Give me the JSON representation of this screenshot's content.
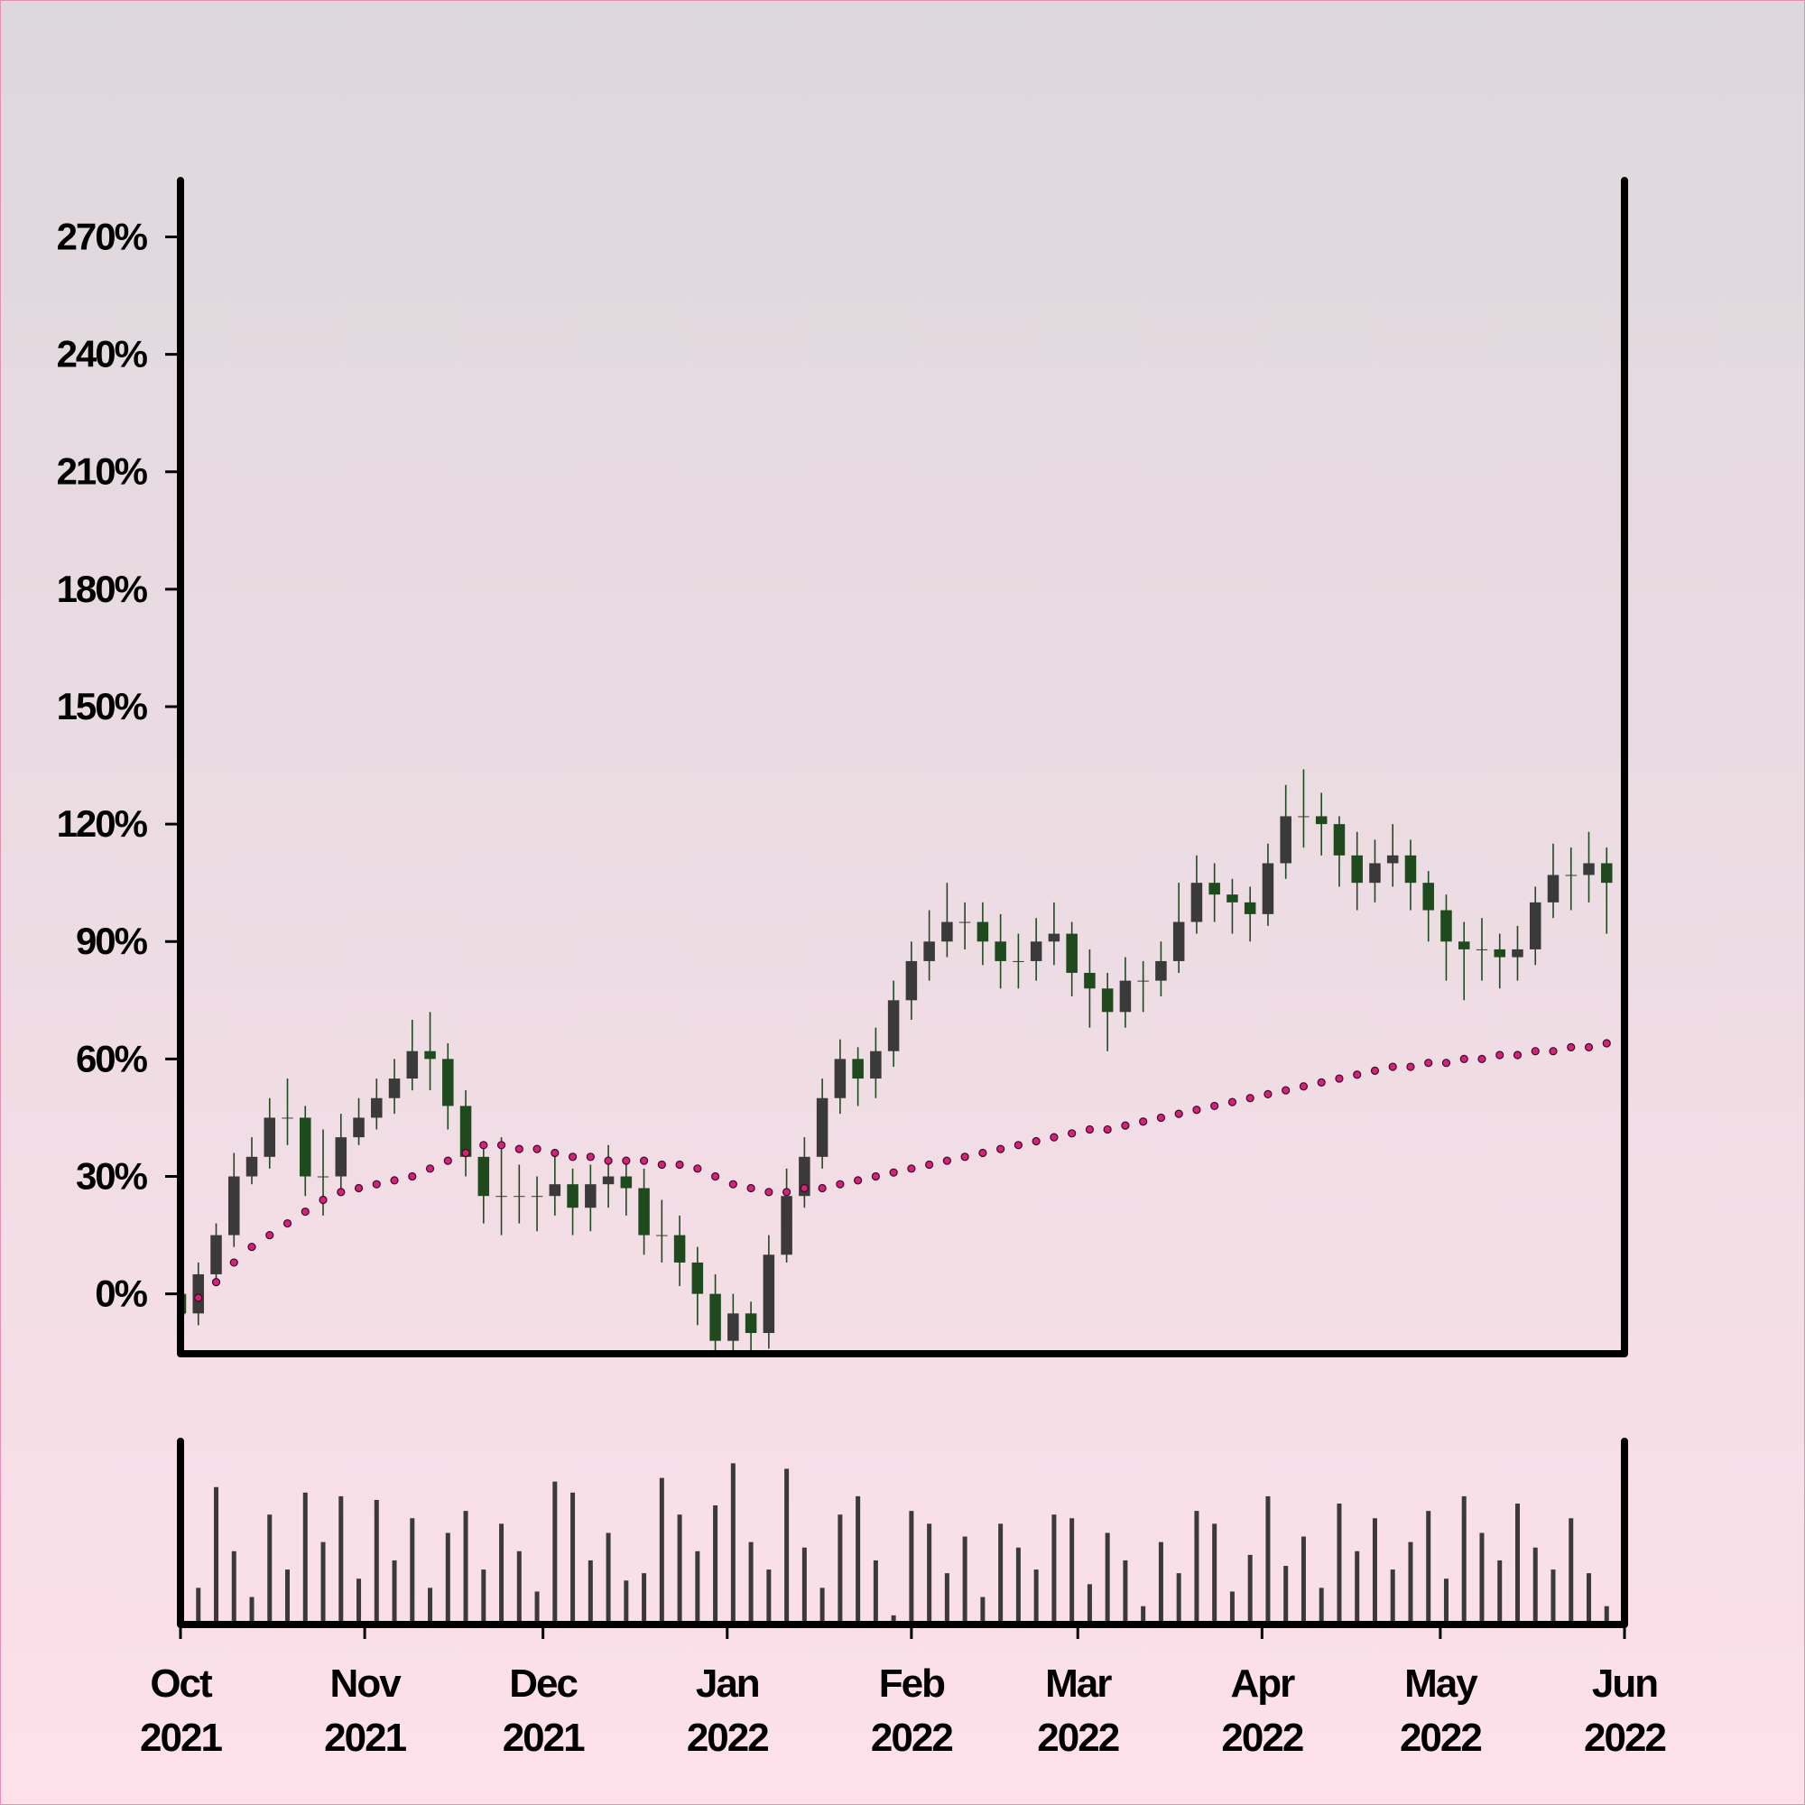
{
  "chart_data": {
    "type": "candlestick",
    "x": [
      0,
      3,
      6,
      9,
      12,
      15,
      18,
      21,
      24,
      27,
      30,
      33,
      36,
      39,
      42,
      45,
      48,
      51,
      54,
      57,
      60,
      63,
      66,
      69,
      72,
      75,
      78,
      81,
      84,
      87,
      90,
      93,
      96,
      99,
      102,
      105,
      108,
      111,
      114,
      117,
      120,
      123,
      126,
      129,
      132,
      135,
      138,
      141,
      144,
      147,
      150,
      153,
      156,
      159,
      162,
      165,
      168,
      171,
      174,
      177,
      180,
      183,
      186,
      189,
      192,
      195,
      198,
      201,
      204,
      207,
      210,
      213,
      216,
      219,
      222,
      225,
      228,
      231,
      234,
      237,
      240
    ],
    "open": [
      0,
      -5,
      5,
      15,
      30,
      35,
      45,
      45,
      30,
      30,
      40,
      45,
      50,
      55,
      62,
      60,
      48,
      35,
      25,
      25,
      25,
      25,
      28,
      22,
      28,
      30,
      27,
      15,
      15,
      8,
      0,
      -12,
      -5,
      -10,
      10,
      25,
      35,
      50,
      60,
      55,
      62,
      75,
      85,
      90,
      95,
      95,
      90,
      85,
      85,
      90,
      92,
      82,
      78,
      72,
      80,
      80,
      85,
      95,
      105,
      102,
      100,
      97,
      110,
      122,
      122,
      120,
      112,
      105,
      110,
      112,
      105,
      98,
      90,
      88,
      88,
      86,
      88,
      100,
      107,
      107,
      110
    ],
    "high": [
      3,
      8,
      18,
      36,
      40,
      50,
      55,
      48,
      42,
      46,
      50,
      55,
      60,
      70,
      72,
      64,
      52,
      38,
      40,
      33,
      30,
      35,
      32,
      33,
      38,
      35,
      32,
      24,
      20,
      12,
      5,
      0,
      -2,
      15,
      32,
      40,
      55,
      65,
      63,
      68,
      80,
      90,
      98,
      105,
      100,
      100,
      97,
      92,
      96,
      100,
      95,
      88,
      82,
      86,
      85,
      90,
      105,
      112,
      110,
      106,
      104,
      115,
      130,
      134,
      128,
      122,
      118,
      116,
      120,
      116,
      108,
      102,
      95,
      96,
      92,
      94,
      104,
      115,
      114,
      118,
      114
    ],
    "low": [
      -15,
      -8,
      2,
      12,
      28,
      32,
      38,
      25,
      20,
      27,
      38,
      42,
      46,
      52,
      52,
      42,
      30,
      18,
      15,
      18,
      16,
      20,
      15,
      16,
      22,
      20,
      10,
      8,
      2,
      -8,
      -20,
      -18,
      -15,
      -14,
      8,
      22,
      32,
      46,
      48,
      50,
      58,
      70,
      80,
      86,
      88,
      84,
      78,
      78,
      80,
      84,
      76,
      68,
      62,
      68,
      72,
      76,
      82,
      92,
      95,
      92,
      90,
      94,
      106,
      114,
      112,
      104,
      98,
      100,
      104,
      98,
      90,
      80,
      75,
      80,
      78,
      80,
      84,
      96,
      98,
      100,
      92
    ],
    "close": [
      -5,
      5,
      15,
      30,
      35,
      45,
      45,
      30,
      30,
      40,
      45,
      50,
      55,
      62,
      60,
      48,
      35,
      25,
      25,
      25,
      25,
      28,
      22,
      28,
      30,
      27,
      15,
      15,
      8,
      0,
      -12,
      -5,
      -10,
      10,
      25,
      35,
      50,
      60,
      55,
      62,
      75,
      85,
      90,
      95,
      95,
      90,
      85,
      85,
      90,
      92,
      82,
      78,
      72,
      80,
      80,
      85,
      95,
      105,
      102,
      100,
      97,
      110,
      122,
      122,
      120,
      112,
      105,
      110,
      112,
      105,
      98,
      90,
      88,
      88,
      86,
      88,
      100,
      107,
      107,
      110,
      105
    ],
    "moving_average": [
      -5,
      -1,
      3,
      8,
      12,
      15,
      18,
      21,
      24,
      26,
      27,
      28,
      29,
      30,
      32,
      34,
      36,
      38,
      38,
      37,
      37,
      36,
      35,
      35,
      34,
      34,
      34,
      33,
      33,
      32,
      30,
      28,
      27,
      26,
      26,
      27,
      27,
      28,
      29,
      30,
      31,
      32,
      33,
      34,
      35,
      36,
      37,
      38,
      39,
      40,
      41,
      42,
      42,
      43,
      44,
      45,
      46,
      47,
      48,
      49,
      50,
      51,
      52,
      53,
      54,
      55,
      56,
      57,
      58,
      58,
      59,
      59,
      60,
      60,
      61,
      61,
      62,
      62,
      63,
      63,
      64
    ],
    "volume": [
      88,
      20,
      75,
      40,
      15,
      60,
      30,
      72,
      45,
      70,
      25,
      68,
      35,
      58,
      20,
      50,
      62,
      30,
      55,
      40,
      18,
      78,
      72,
      35,
      50,
      24,
      28,
      80,
      60,
      40,
      65,
      88,
      45,
      30,
      85,
      42,
      20,
      60,
      70,
      35,
      5,
      62,
      55,
      28,
      48,
      15,
      55,
      42,
      30,
      60,
      58,
      22,
      50,
      35,
      10,
      45,
      28,
      62,
      55,
      18,
      38,
      70,
      32,
      48,
      20,
      66,
      40,
      58,
      30,
      45,
      62,
      25,
      70,
      50,
      35,
      66,
      42,
      30,
      58,
      28,
      10
    ],
    "up_color": "#3a3a3a",
    "down_color": "#1e4a1e",
    "wick_color": "#1e4a1e",
    "ma_color": "#d6207e",
    "volume_color": "#3a3a3a",
    "xlim": [
      0,
      243
    ],
    "xticks": [
      {
        "value": 0,
        "label": "Oct\n2021"
      },
      {
        "value": 31,
        "label": "Nov\n2021"
      },
      {
        "value": 61,
        "label": "Dec\n2021"
      },
      {
        "value": 92,
        "label": "Jan\n2022"
      },
      {
        "value": 123,
        "label": "Feb\n2022"
      },
      {
        "value": 151,
        "label": "Mar\n2022"
      },
      {
        "value": 182,
        "label": "Apr\n2022"
      },
      {
        "value": 212,
        "label": "May\n2022"
      },
      {
        "value": 243,
        "label": "Jun\n2022"
      }
    ],
    "ylim": [
      -15.3,
      284.4
    ],
    "yticks": [
      {
        "value": 0,
        "label": "0%"
      },
      {
        "value": 30,
        "label": "30%"
      },
      {
        "value": 60,
        "label": "60%"
      },
      {
        "value": 90,
        "label": "90%"
      },
      {
        "value": 120,
        "label": "120%"
      },
      {
        "value": 150,
        "label": "150%"
      },
      {
        "value": 180,
        "label": "180%"
      },
      {
        "value": 210,
        "label": "210%"
      },
      {
        "value": 240,
        "label": "240%"
      },
      {
        "value": 270,
        "label": "270%"
      }
    ],
    "volume_ylim": [
      0,
      100
    ]
  }
}
